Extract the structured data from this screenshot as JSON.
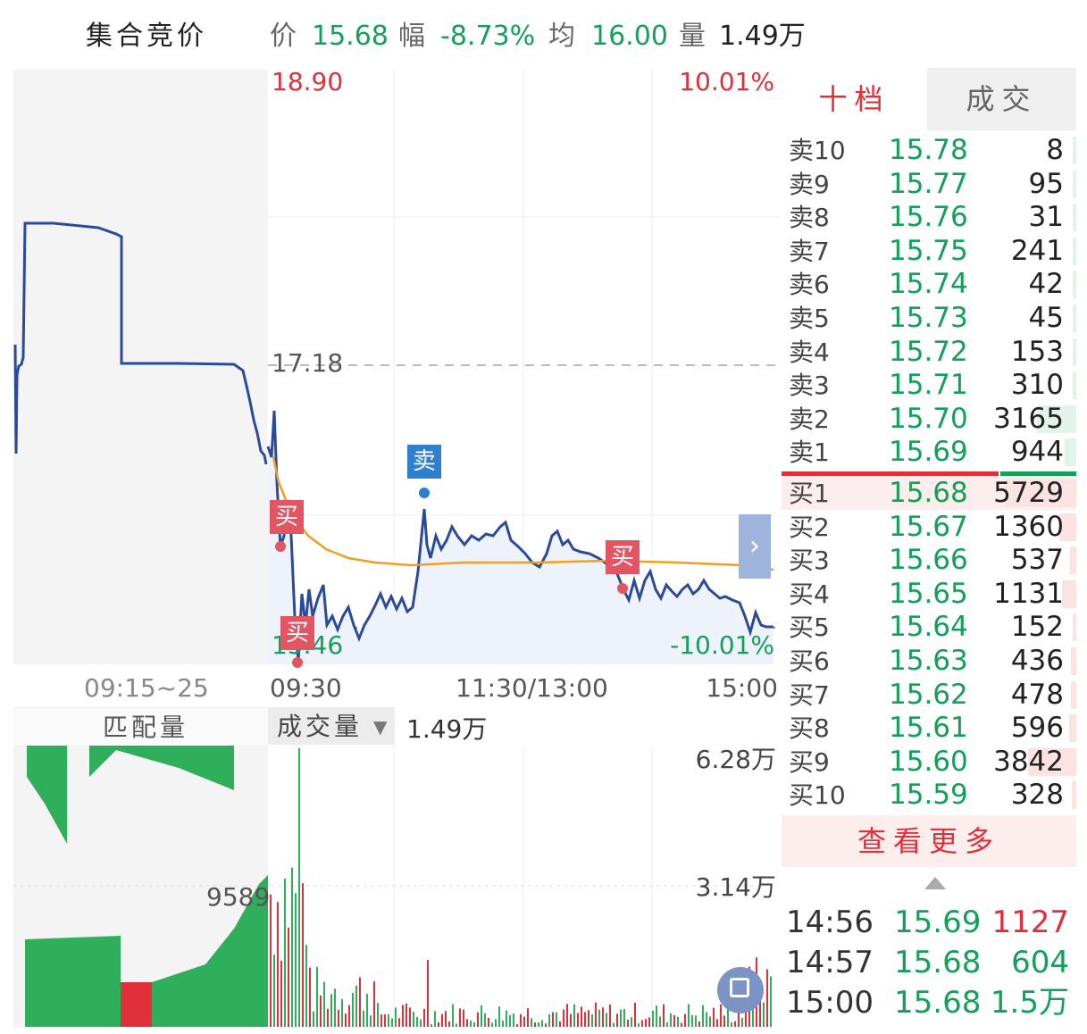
{
  "header": {
    "title": "集合竞价",
    "price_label": "价",
    "price": "15.68",
    "change_label": "幅",
    "change": "-8.73%",
    "avg_label": "均",
    "avg": "16.00",
    "volume_label": "量",
    "volume": "1.49万"
  },
  "chart": {
    "y_top_price": "18.90",
    "y_top_pct": "10.01%",
    "y_mid_price": "17.18",
    "y_bottom_price": "15.46",
    "y_bottom_pct": "-10.01%",
    "x_labels": [
      "09:15~25",
      "09:30",
      "11:30/13:00",
      "15:00"
    ],
    "markers": {
      "buy": "买",
      "sell": "卖"
    },
    "expand_icon": "chevron-right-icon",
    "fullscreen_icon": "fullscreen-icon"
  },
  "volume_panel": {
    "left_title": "匹配量",
    "selector_label": "成交量",
    "selector_value": "1.49万",
    "y_top": "6.28万",
    "y_mid": "3.14万",
    "match_value": "9589"
  },
  "orderbook": {
    "tabs": [
      "十档",
      "成交"
    ],
    "asks": [
      {
        "label": "卖10",
        "price": "15.78",
        "vol": "8",
        "bar": 0.02
      },
      {
        "label": "卖9",
        "price": "15.77",
        "vol": "95",
        "bar": 0.02
      },
      {
        "label": "卖8",
        "price": "15.76",
        "vol": "31",
        "bar": 0.01
      },
      {
        "label": "卖7",
        "price": "15.75",
        "vol": "241",
        "bar": 0.04
      },
      {
        "label": "卖6",
        "price": "15.74",
        "vol": "42",
        "bar": 0.01
      },
      {
        "label": "卖5",
        "price": "15.73",
        "vol": "45",
        "bar": 0.01
      },
      {
        "label": "卖4",
        "price": "15.72",
        "vol": "153",
        "bar": 0.03
      },
      {
        "label": "卖3",
        "price": "15.71",
        "vol": "310",
        "bar": 0.05
      },
      {
        "label": "卖2",
        "price": "15.70",
        "vol": "3165",
        "bar": 0.55
      },
      {
        "label": "卖1",
        "price": "15.69",
        "vol": "944",
        "bar": 0.16
      }
    ],
    "bids": [
      {
        "label": "买1",
        "price": "15.68",
        "vol": "5729",
        "bar": 1.0
      },
      {
        "label": "买2",
        "price": "15.67",
        "vol": "1360",
        "bar": 0.24
      },
      {
        "label": "买3",
        "price": "15.66",
        "vol": "537",
        "bar": 0.09
      },
      {
        "label": "买4",
        "price": "15.65",
        "vol": "1131",
        "bar": 0.2
      },
      {
        "label": "买5",
        "price": "15.64",
        "vol": "152",
        "bar": 0.03
      },
      {
        "label": "买6",
        "price": "15.63",
        "vol": "436",
        "bar": 0.08
      },
      {
        "label": "买7",
        "price": "15.62",
        "vol": "478",
        "bar": 0.08
      },
      {
        "label": "买8",
        "price": "15.61",
        "vol": "596",
        "bar": 0.1
      },
      {
        "label": "买9",
        "price": "15.60",
        "vol": "3842",
        "bar": 0.67
      },
      {
        "label": "买10",
        "price": "15.59",
        "vol": "328",
        "bar": 0.06
      }
    ],
    "more_label": "查看更多",
    "up_icon": "triangle-up-icon",
    "trades": [
      {
        "time": "14:56",
        "price": "15.69",
        "vol": "1127",
        "dir": "up"
      },
      {
        "time": "14:57",
        "price": "15.68",
        "vol": "604",
        "dir": "down"
      },
      {
        "time": "15:00",
        "price": "15.68",
        "vol": "1.5万",
        "dir": "down"
      }
    ]
  },
  "colors": {
    "up": "#e0303a",
    "down": "#14a05a",
    "line": "#2b4a9b",
    "avg": "#f0a020"
  }
}
